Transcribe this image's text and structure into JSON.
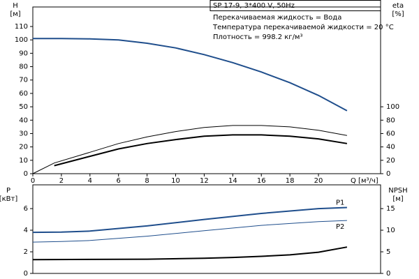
{
  "chart_data": [
    {
      "type": "line",
      "title": "SP 17-9, 3*400 V, 50Hz",
      "annotations": [
        "Перекачиваемая жидкость = Вода",
        "Температура перекачиваемой жидкости = 20 °C",
        "Плотность = 998.2 кг/м³"
      ],
      "ylabel": [
        "H",
        "[м]"
      ],
      "y2label": [
        "eta",
        "[%]"
      ],
      "xlabel": "Q [м³/ч]",
      "xlim": [
        0,
        24.35
      ],
      "xticks": [
        0,
        2,
        4,
        6,
        8,
        10,
        12,
        14,
        16,
        18,
        20
      ],
      "ylim": [
        0,
        124.6
      ],
      "yticks": [
        0,
        10,
        20,
        30,
        40,
        50,
        60,
        70,
        80,
        90,
        100,
        110
      ],
      "y2lim": [
        0,
        249.2
      ],
      "y2ticks": [
        0,
        20,
        40,
        60,
        80,
        100
      ],
      "series": [
        {
          "color": "#1f4e8c",
          "line_width": 2,
          "x": [
            0,
            2,
            4,
            6,
            8,
            10,
            12,
            14,
            16,
            18,
            20,
            22
          ],
          "values": [
            101,
            101,
            100.8,
            100,
            97.5,
            94,
            89,
            83,
            76,
            68,
            58.5,
            47
          ]
        },
        {
          "color": "#000000",
          "line_width": 2,
          "axis": "y2",
          "x": [
            1.5,
            4,
            6,
            8,
            10,
            12,
            14,
            16,
            18,
            20,
            22
          ],
          "values": [
            12,
            26,
            37,
            45,
            51,
            56,
            58,
            58,
            56,
            52,
            45
          ]
        },
        {
          "color": "#000000",
          "line_width": 1,
          "axis": "y2",
          "x": [
            0,
            1.5,
            4,
            6,
            8,
            10,
            12,
            14,
            16,
            18,
            20,
            22
          ],
          "values": [
            0,
            16,
            32,
            45,
            55,
            63,
            69,
            72,
            72,
            70,
            65,
            57
          ]
        }
      ]
    },
    {
      "type": "line",
      "ylabel": [
        "P",
        "[кВт]"
      ],
      "y2label": [
        "NPSH",
        "[м]"
      ],
      "xlim": [
        0,
        24.35
      ],
      "ylim": [
        0,
        8.2
      ],
      "yticks": [
        0,
        2,
        4,
        6
      ],
      "y2lim": [
        0,
        20.5
      ],
      "y2ticks": [
        0,
        5,
        10,
        15
      ],
      "series": [
        {
          "name": "P1",
          "color": "#1f4e8c",
          "line_width": 2,
          "x": [
            0,
            2,
            4,
            8,
            12,
            16,
            20,
            22
          ],
          "values": [
            3.8,
            3.82,
            3.92,
            4.4,
            5.0,
            5.55,
            6.0,
            6.1
          ]
        },
        {
          "name": "P2",
          "color": "#1f4e8c",
          "line_width": 1,
          "x": [
            0,
            2,
            4,
            8,
            12,
            16,
            20,
            22
          ],
          "values": [
            2.9,
            2.95,
            3.05,
            3.45,
            3.95,
            4.45,
            4.8,
            4.9
          ]
        },
        {
          "color": "#000000",
          "line_width": 2,
          "axis": "y2",
          "x": [
            0,
            4,
            8,
            12,
            14,
            16,
            18,
            20,
            22
          ],
          "values": [
            3.2,
            3.25,
            3.3,
            3.5,
            3.7,
            3.95,
            4.3,
            4.9,
            6.1
          ]
        }
      ]
    }
  ]
}
